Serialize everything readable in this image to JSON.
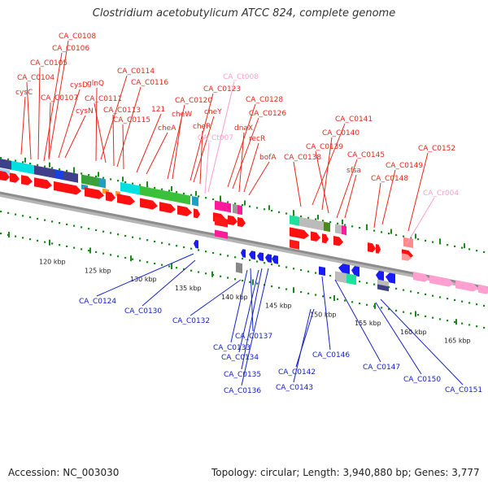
{
  "header": {
    "title": "Clostridium acetobutylicum ATCC 824, complete genome"
  },
  "footer": {
    "accession": "Accession: NC_003030",
    "summary": "Topology: circular; Length: 3,940,880 bp; Genes: 3,777"
  },
  "colors": {
    "forward_label": "#e8261c",
    "reverse_label": "#1422c8",
    "rna_label": "#ff9ec8",
    "backbone": "#8c8c8c",
    "ruler": "#1a8a1a",
    "forward_arrow": "#ff1010",
    "reverse_arrow": "#1a1aff"
  },
  "scale": {
    "ticks": [
      "120 kbp",
      "125 kbp",
      "130 kbp",
      "135 kbp",
      "140 kbp",
      "145 kbp",
      "150 kbp",
      "155 kbp",
      "160 kbp",
      "165 kbp"
    ]
  },
  "forward_genes": [
    "CA_C0108",
    "CA_C0106",
    "CA_C0105",
    "CA_C0104",
    "cysC",
    "CA_C0107",
    "cysD",
    "cysN",
    "CA_C0114",
    "glnQ",
    "CA_C0116",
    "CA_C0111",
    "CA_C0113",
    "CA_C0115",
    "121",
    "cheA",
    "CA_C0120",
    "cheW",
    "CA_C0123",
    "cheY",
    "cheR",
    "CA_C0128",
    "CA_C0126",
    "dnaX",
    "recR",
    "bofA",
    "CA_C0141",
    "CA_C0140",
    "CA_C0139",
    "CA_C0138",
    "CA_C0145",
    "sfsa",
    "CA_C0152",
    "CA_C0149",
    "CA_C0148"
  ],
  "rna_genes": [
    "CA_Ct008",
    "CA_Ct007",
    "CA_Cr004"
  ],
  "reverse_genes": [
    "CA_C0124",
    "CA_C0130",
    "CA_C0132",
    "CA_C0137",
    "CA_C0133",
    "CA_C0134",
    "CA_C0135",
    "CA_C0136",
    "CA_C0146",
    "CA_C0142",
    "CA_C0143",
    "CA_C0147",
    "CA_C0150",
    "CA_C0151"
  ]
}
